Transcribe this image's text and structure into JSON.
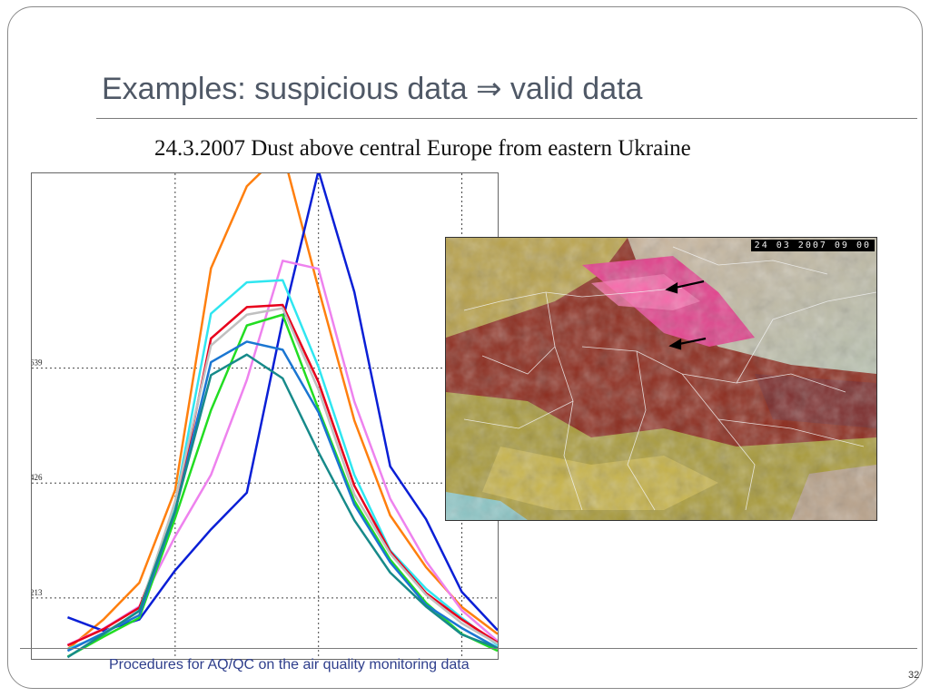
{
  "slide": {
    "title": "Examples: suspicious data ⇒ valid data",
    "subtitle": "24.3.2007 Dust above central Europe from eastern Ukraine",
    "footer": "Procedures for AQ/QC on the air quality monitoring data",
    "page_number": "32"
  },
  "satellite_image": {
    "timestamp": "24 03 2007 09 00"
  },
  "chart_data": {
    "type": "line",
    "title": "",
    "xlabel": "",
    "ylabel": "",
    "ylim": [
      100,
      1000
    ],
    "yticks": [
      213,
      426,
      639
    ],
    "ytick_labels": [
      "213",
      "426",
      "639"
    ],
    "x_vertical_gridlines": [
      4,
      8,
      12
    ],
    "xlim": [
      0,
      13
    ],
    "grid": "dotted",
    "x": [
      1,
      2,
      3,
      4,
      5,
      6,
      7,
      8,
      9,
      10,
      11,
      12,
      13
    ],
    "series": [
      {
        "color": "#ff7f0e",
        "values": [
          118,
          173,
          241,
          413,
          824,
          976,
          1041,
          786,
          542,
          366,
          270,
          196,
          146
        ]
      },
      {
        "color": "#0a1fd6",
        "values": [
          177,
          152,
          173,
          264,
          340,
          408,
          727,
          1005,
          780,
          457,
          359,
          224,
          153
        ]
      },
      {
        "color": "#ee82ee",
        "values": [
          126,
          156,
          197,
          327,
          441,
          617,
          838,
          823,
          577,
          397,
          281,
          190,
          133
        ]
      },
      {
        "color": "#2fe6f0",
        "values": [
          118,
          145,
          190,
          389,
          740,
          798,
          802,
          641,
          441,
          301,
          230,
          176,
          125
        ]
      },
      {
        "color": "#e8001c",
        "values": [
          125,
          155,
          195,
          370,
          694,
          752,
          756,
          613,
          421,
          299,
          222,
          173,
          130
        ]
      },
      {
        "color": "#c0c0c0",
        "values": [
          115,
          148,
          188,
          392,
          681,
          738,
          750,
          599,
          405,
          295,
          219,
          166,
          128
        ]
      },
      {
        "color": "#22dd22",
        "values": [
          104,
          141,
          176,
          361,
          561,
          718,
          738,
          563,
          393,
          284,
          204,
          146,
          115
        ]
      },
      {
        "color": "#1a76d2",
        "values": [
          115,
          148,
          181,
          373,
          650,
          688,
          673,
          557,
          386,
          279,
          200,
          157,
          120
        ]
      },
      {
        "color": "#178a8a",
        "values": [
          103,
          146,
          189,
          375,
          626,
          664,
          620,
          483,
          357,
          260,
          197,
          145,
          120
        ]
      }
    ]
  }
}
